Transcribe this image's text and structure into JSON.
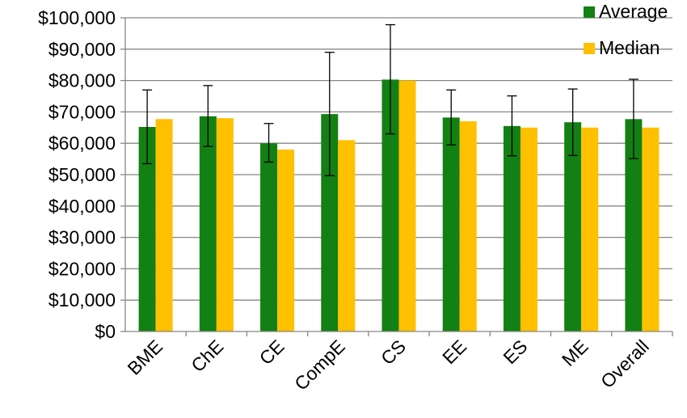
{
  "chart_data": {
    "type": "bar",
    "title": "",
    "xlabel": "",
    "ylabel": "",
    "categories": [
      "BME",
      "ChE",
      "CE",
      "CompE",
      "CS",
      "EE",
      "ES",
      "ME",
      "Overall"
    ],
    "series": [
      {
        "name": "Average",
        "color": "#138013",
        "values": [
          65200,
          68600,
          60000,
          69300,
          80300,
          68200,
          65500,
          66700,
          67700
        ],
        "error_low": [
          53500,
          59000,
          54000,
          49700,
          63000,
          59500,
          56000,
          56100,
          55100
        ],
        "error_high": [
          77000,
          78400,
          66300,
          89000,
          97800,
          77000,
          75100,
          77300,
          80400
        ]
      },
      {
        "name": "Median",
        "color": "#FFC000",
        "values": [
          67700,
          68000,
          58000,
          61000,
          80000,
          67000,
          65000,
          65000,
          65000
        ]
      }
    ],
    "ylim": [
      0,
      100000
    ],
    "yticks": [
      "$0",
      "$10,000",
      "$20,000",
      "$30,000",
      "$40,000",
      "$50,000",
      "$60,000",
      "$70,000",
      "$80,000",
      "$90,000",
      "$100,000"
    ],
    "ytick_values": [
      0,
      10000,
      20000,
      30000,
      40000,
      50000,
      60000,
      70000,
      80000,
      90000,
      100000
    ],
    "grid": true,
    "legend_position": "top-right",
    "gridline_color": "#878787"
  }
}
